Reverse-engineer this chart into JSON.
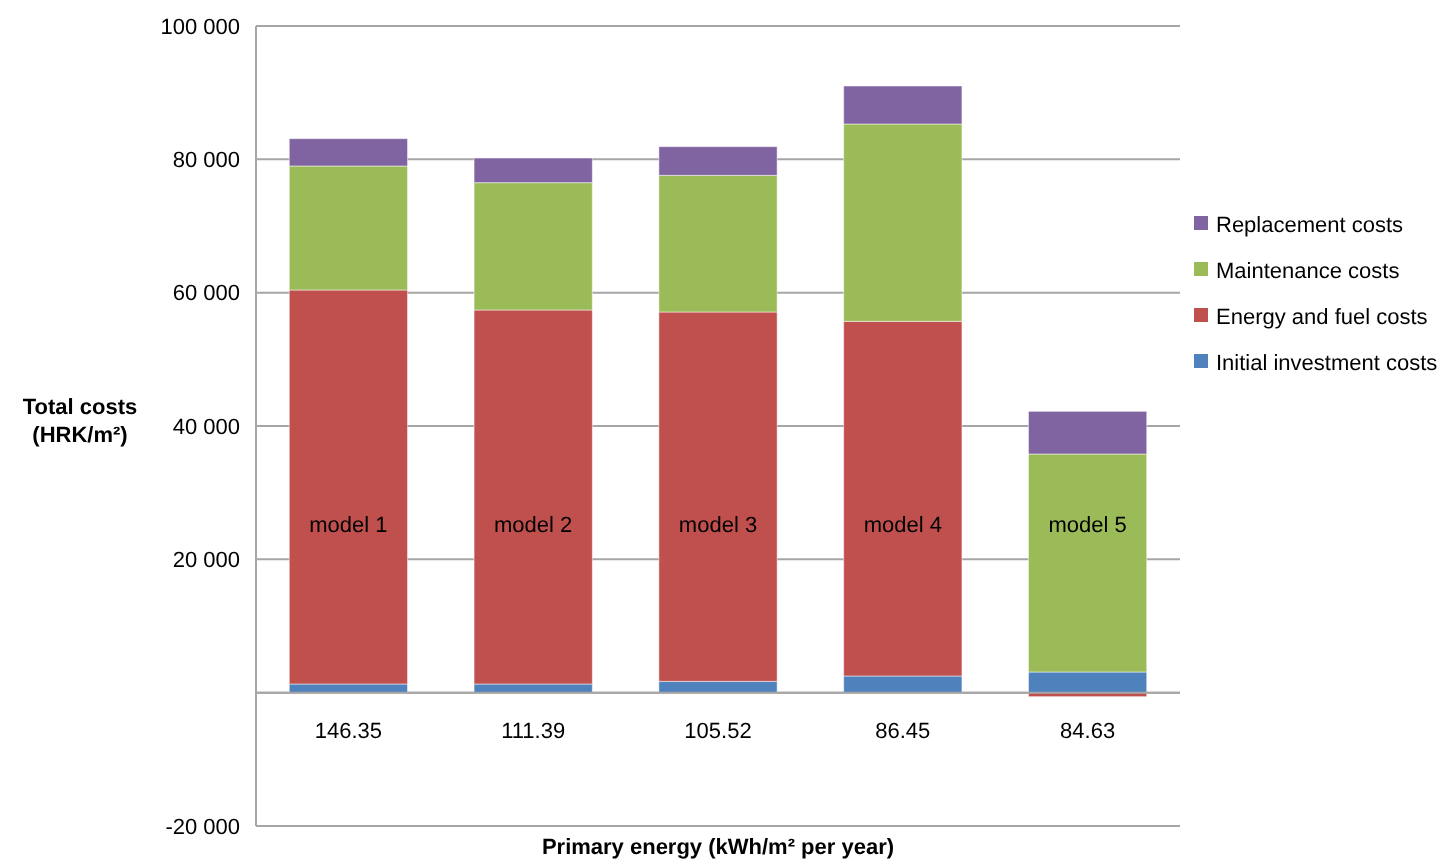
{
  "chart_data": {
    "type": "bar",
    "stacked": true,
    "xlabel": "Primary energy (kWh/m² per year)",
    "ylabel": "Total costs (HRK/m²)",
    "categories": [
      "146.35",
      "111.39",
      "105.52",
      "86.45",
      "84.63"
    ],
    "series": [
      {
        "name": "Initial investment costs",
        "color": "#4f81bd",
        "values": [
          1300,
          1300,
          1700,
          2500,
          3100
        ]
      },
      {
        "name": "Energy and fuel costs",
        "color": "#c0504d",
        "values": [
          59100,
          56100,
          55400,
          53200,
          -600
        ]
      },
      {
        "name": "Maintenance costs",
        "color": "#9bbb59",
        "values": [
          18600,
          19100,
          20500,
          29600,
          32700
        ]
      },
      {
        "name": "Replacement costs",
        "color": "#8064a2",
        "values": [
          4100,
          3700,
          4300,
          5700,
          6400
        ]
      }
    ],
    "ylim": [
      -20000,
      100000
    ],
    "yticks": [
      {
        "value": -20000,
        "label": "-20 000"
      },
      {
        "value": 0,
        "label": null
      },
      {
        "value": 20000,
        "label": "20 000"
      },
      {
        "value": 40000,
        "label": "40 000"
      },
      {
        "value": 60000,
        "label": "60 000"
      },
      {
        "value": 80000,
        "label": "80 000"
      },
      {
        "value": 100000,
        "label": "100 000"
      }
    ],
    "grid": "y",
    "legend": "right",
    "annotations": [
      "model 1",
      "model 2",
      "model 3",
      "model 4",
      "model 5"
    ]
  }
}
